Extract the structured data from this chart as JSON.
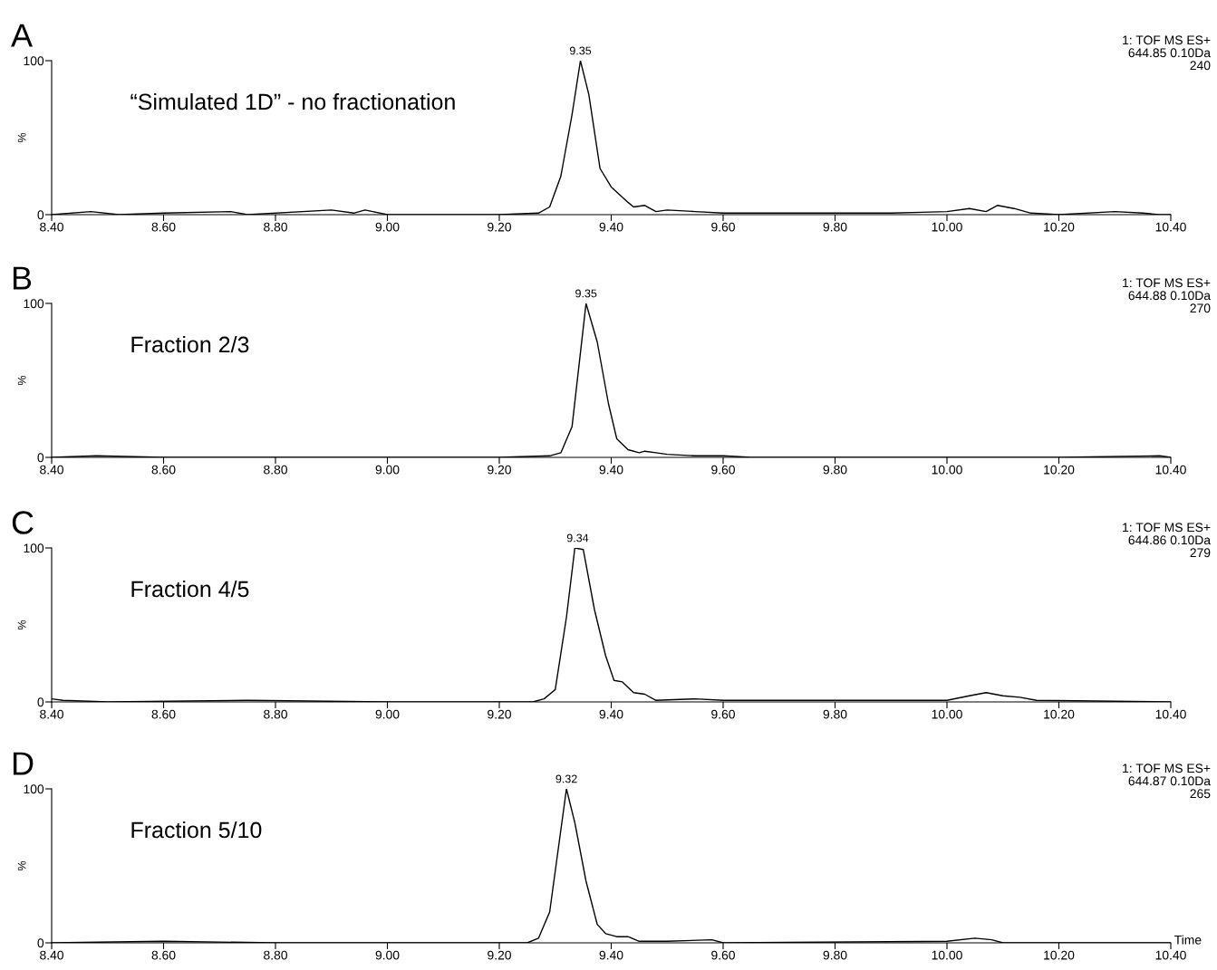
{
  "chart_data": [
    {
      "type": "line",
      "title": "A",
      "subtitle": "“Simulated 1D” - no fractionation",
      "ylabel": "%",
      "xlim": [
        8.4,
        10.4
      ],
      "ylim": [
        0,
        100
      ],
      "yticks": [
        0,
        100
      ],
      "xticks": [
        {
          "value": 8.4,
          "label": "8.40"
        },
        {
          "value": 8.6,
          "label": "8.60"
        },
        {
          "value": 8.8,
          "label": "8.80"
        },
        {
          "value": 9.0,
          "label": "9.00"
        },
        {
          "value": 9.2,
          "label": "9.20"
        },
        {
          "value": 9.4,
          "label": "9.40"
        },
        {
          "value": 9.6,
          "label": "9.60"
        },
        {
          "value": 9.8,
          "label": "9.80"
        },
        {
          "value": 10.0,
          "label": "10.00"
        },
        {
          "value": 10.2,
          "label": "10.20"
        },
        {
          "value": 10.4,
          "label": "10.40"
        }
      ],
      "annotations": [
        {
          "text": "9.35",
          "x": 9.345,
          "y": 100
        },
        "1: TOF MS ES+",
        "644.85 0.10Da",
        "240"
      ],
      "series": [
        {
          "color": "#000000",
          "x": [
            8.4,
            8.47,
            8.52,
            8.6,
            8.72,
            8.75,
            8.9,
            8.94,
            8.96,
            9.0,
            9.2,
            9.27,
            9.29,
            9.31,
            9.33,
            9.345,
            9.36,
            9.38,
            9.4,
            9.43,
            9.44,
            9.46,
            9.48,
            9.5,
            9.55,
            9.6,
            9.7,
            9.8,
            9.9,
            10.0,
            10.04,
            10.07,
            10.09,
            10.12,
            10.15,
            10.2,
            10.3,
            10.35,
            10.38,
            10.4
          ],
          "values": [
            0,
            2,
            0,
            1,
            2,
            0,
            3,
            1,
            3,
            0,
            0,
            1,
            5,
            25,
            65,
            100,
            78,
            30,
            18,
            8,
            5,
            6,
            2,
            3,
            2,
            1,
            1,
            1,
            1,
            2,
            4,
            2,
            6,
            4,
            1,
            0,
            2,
            1,
            0,
            0
          ]
        }
      ]
    },
    {
      "type": "line",
      "title": "B",
      "subtitle": "Fraction 2/3",
      "ylabel": "%",
      "xlim": [
        8.4,
        10.4
      ],
      "ylim": [
        0,
        100
      ],
      "yticks": [
        0,
        100
      ],
      "xticks": [
        {
          "value": 8.4,
          "label": "8.40"
        },
        {
          "value": 8.6,
          "label": "8.60"
        },
        {
          "value": 8.8,
          "label": "8.80"
        },
        {
          "value": 9.0,
          "label": "9.00"
        },
        {
          "value": 9.2,
          "label": "9.20"
        },
        {
          "value": 9.4,
          "label": "9.40"
        },
        {
          "value": 9.6,
          "label": "9.60"
        },
        {
          "value": 9.8,
          "label": "9.80"
        },
        {
          "value": 10.0,
          "label": "10.00"
        },
        {
          "value": 10.2,
          "label": "10.20"
        },
        {
          "value": 10.4,
          "label": "10.40"
        }
      ],
      "annotations": [
        {
          "text": "9.35",
          "x": 9.355,
          "y": 100
        },
        "1: TOF MS ES+",
        "644.88 0.10Da",
        "270"
      ],
      "series": [
        {
          "color": "#000000",
          "x": [
            8.4,
            8.48,
            8.6,
            8.8,
            9.0,
            9.2,
            9.29,
            9.31,
            9.33,
            9.355,
            9.375,
            9.395,
            9.41,
            9.43,
            9.45,
            9.46,
            9.48,
            9.5,
            9.55,
            9.6,
            9.65,
            9.8,
            10.0,
            10.2,
            10.38,
            10.4
          ],
          "values": [
            0,
            1,
            0,
            0,
            0,
            0,
            1,
            3,
            20,
            100,
            75,
            35,
            12,
            5,
            3,
            4,
            3,
            2,
            1,
            1,
            0,
            0,
            0,
            0,
            1,
            0
          ]
        }
      ]
    },
    {
      "type": "line",
      "title": "C",
      "subtitle": "Fraction 4/5",
      "ylabel": "%",
      "xlim": [
        8.4,
        10.4
      ],
      "ylim": [
        0,
        100
      ],
      "yticks": [
        0,
        100
      ],
      "xticks": [
        {
          "value": 8.4,
          "label": "8.40"
        },
        {
          "value": 8.6,
          "label": "8.60"
        },
        {
          "value": 8.8,
          "label": "8.80"
        },
        {
          "value": 9.0,
          "label": "9.00"
        },
        {
          "value": 9.2,
          "label": "9.20"
        },
        {
          "value": 9.4,
          "label": "9.40"
        },
        {
          "value": 9.6,
          "label": "9.60"
        },
        {
          "value": 9.8,
          "label": "9.80"
        },
        {
          "value": 10.0,
          "label": "10.00"
        },
        {
          "value": 10.2,
          "label": "10.20"
        },
        {
          "value": 10.4,
          "label": "10.40"
        }
      ],
      "annotations": [
        {
          "text": "9.34",
          "x": 9.34,
          "y": 100
        },
        "1: TOF MS ES+",
        "644.86 0.10Da",
        "279"
      ],
      "series": [
        {
          "color": "#000000",
          "x": [
            8.4,
            8.42,
            8.5,
            8.75,
            9.0,
            9.26,
            9.28,
            9.3,
            9.32,
            9.335,
            9.35,
            9.37,
            9.39,
            9.405,
            9.42,
            9.44,
            9.46,
            9.48,
            9.55,
            9.6,
            9.8,
            10.0,
            10.04,
            10.07,
            10.1,
            10.13,
            10.16,
            10.4
          ],
          "values": [
            2,
            1,
            0,
            1,
            0,
            0,
            2,
            8,
            55,
            100,
            99,
            60,
            30,
            14,
            13,
            6,
            5,
            1,
            2,
            1,
            1,
            1,
            4,
            6,
            4,
            3,
            1,
            0
          ]
        }
      ]
    },
    {
      "type": "line",
      "title": "D",
      "subtitle": "Fraction 5/10",
      "ylabel": "%",
      "xlabel": "Time",
      "xlim": [
        8.4,
        10.4
      ],
      "ylim": [
        0,
        100
      ],
      "yticks": [
        0,
        100
      ],
      "xticks": [
        {
          "value": 8.4,
          "label": "8.40"
        },
        {
          "value": 8.6,
          "label": "8.60"
        },
        {
          "value": 8.8,
          "label": "8.80"
        },
        {
          "value": 9.0,
          "label": "9.00"
        },
        {
          "value": 9.2,
          "label": "9.20"
        },
        {
          "value": 9.4,
          "label": "9.40"
        },
        {
          "value": 9.6,
          "label": "9.60"
        },
        {
          "value": 9.8,
          "label": "9.80"
        },
        {
          "value": 10.0,
          "label": "10.00"
        },
        {
          "value": 10.2,
          "label": "10.20"
        },
        {
          "value": 10.4,
          "label": "10.40"
        }
      ],
      "annotations": [
        {
          "text": "9.32",
          "x": 9.32,
          "y": 100
        },
        "1: TOF MS ES+",
        "644.87 0.10Da",
        "265"
      ],
      "series": [
        {
          "color": "#000000",
          "x": [
            8.4,
            8.6,
            8.8,
            9.0,
            9.25,
            9.27,
            9.29,
            9.305,
            9.32,
            9.335,
            9.355,
            9.375,
            9.39,
            9.41,
            9.43,
            9.45,
            9.5,
            9.58,
            9.6,
            10.0,
            10.05,
            10.08,
            10.1,
            10.4
          ],
          "values": [
            0,
            1,
            0,
            0,
            0,
            3,
            20,
            60,
            100,
            78,
            40,
            12,
            6,
            4,
            4,
            1,
            1,
            2,
            0,
            1,
            3,
            2,
            0,
            0
          ]
        }
      ]
    }
  ]
}
